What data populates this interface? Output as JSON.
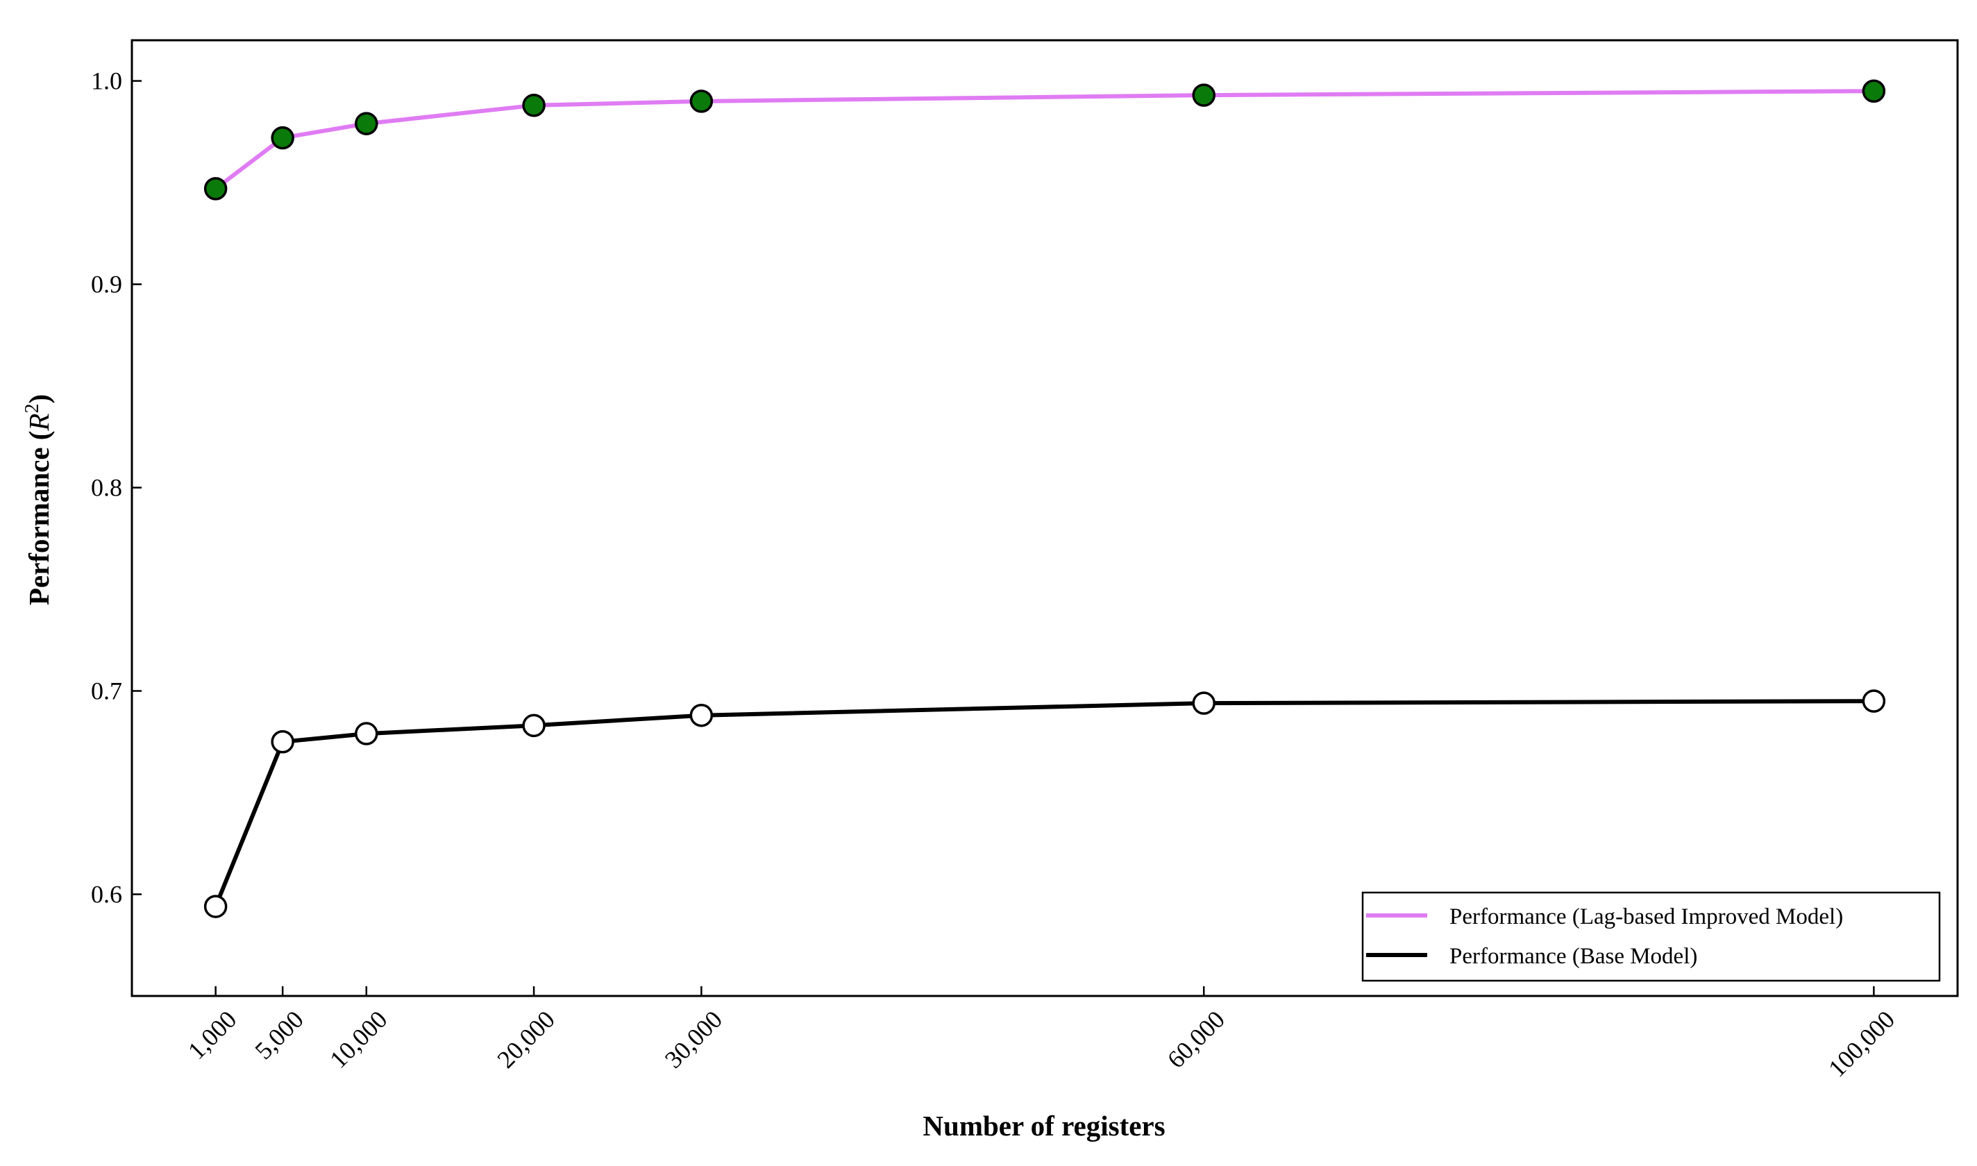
{
  "chart_data": {
    "type": "line",
    "title": "",
    "xlabel": "Number of registers",
    "ylabel_text": "Performance (",
    "ylabel_symbol": "R",
    "ylabel_sup": "2",
    "ylabel_close": ")",
    "x": [
      1000,
      5000,
      10000,
      20000,
      30000,
      60000,
      100000
    ],
    "x_tick_labels": [
      "1,000",
      "5,000",
      "10,000",
      "20,000",
      "30,000",
      "60,000",
      "100,000"
    ],
    "y_ticks": [
      0.6,
      0.7,
      0.8,
      0.9,
      1.0
    ],
    "y_tick_labels": [
      "0.6",
      "0.7",
      "0.8",
      "0.9",
      "1.0"
    ],
    "xlim": [
      -4000,
      105000
    ],
    "ylim": [
      0.55,
      1.02
    ],
    "grid": false,
    "legend_position": "lower-right",
    "series": [
      {
        "name": "Performance (Lag-based Improved Model)",
        "values": [
          0.947,
          0.972,
          0.979,
          0.988,
          0.99,
          0.993,
          0.995
        ],
        "line_color": "#e07cf3",
        "marker_fill": "#0a7a0a",
        "marker_edge": "#000000"
      },
      {
        "name": "Performance (Base Model)",
        "values": [
          0.594,
          0.675,
          0.679,
          0.683,
          0.688,
          0.694,
          0.695
        ],
        "line_color": "#000000",
        "marker_fill": "#ffffff",
        "marker_edge": "#000000"
      }
    ]
  }
}
